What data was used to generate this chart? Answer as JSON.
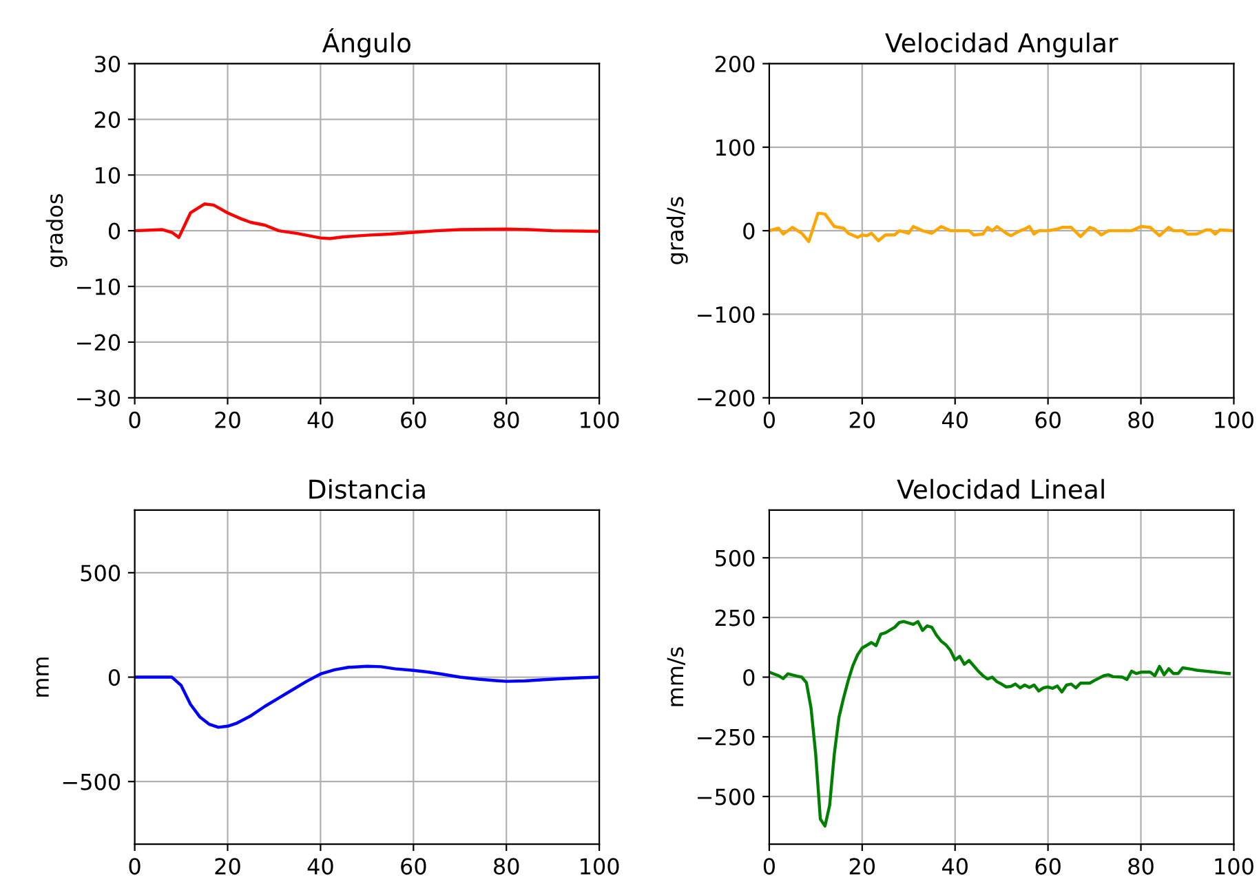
{
  "chart_data": [
    {
      "type": "line",
      "title": "Ángulo",
      "ylabel": "grados",
      "xlim": [
        0,
        100
      ],
      "xticks": [
        0,
        20,
        40,
        60,
        80,
        100
      ],
      "ylim": [
        -30,
        30
      ],
      "yticks": [
        {
          "value": -30,
          "label": "−30"
        },
        {
          "value": -20,
          "label": "−20"
        },
        {
          "value": -10,
          "label": "−10"
        },
        0,
        10,
        20,
        30
      ],
      "grid": true,
      "series": [
        {
          "color": "#ff0000",
          "x": [
            0,
            6,
            8,
            9.5,
            12,
            15,
            17,
            20,
            23,
            25,
            28,
            31,
            35,
            40,
            42,
            45,
            50,
            55,
            60,
            65,
            70,
            80,
            85,
            90,
            100
          ],
          "values": [
            0,
            0.2,
            -0.3,
            -1.2,
            3.2,
            4.8,
            4.6,
            3.2,
            2.1,
            1.5,
            1,
            0,
            -0.5,
            -1.3,
            -1.4,
            -1.1,
            -0.8,
            -0.6,
            -0.3,
            0,
            0.2,
            0.3,
            0.2,
            0,
            -0.1
          ]
        }
      ]
    },
    {
      "type": "line",
      "title": "Velocidad Angular",
      "ylabel": "grad/s",
      "xlim": [
        0,
        100
      ],
      "xticks": [
        0,
        20,
        40,
        60,
        80,
        100
      ],
      "ylim": [
        -200,
        200
      ],
      "yticks": [
        {
          "value": -200,
          "label": "−200"
        },
        {
          "value": -100,
          "label": "−100"
        },
        0,
        100,
        200
      ],
      "grid": true,
      "series": [
        {
          "color": "#ffa500",
          "x": [
            0,
            2,
            3,
            5,
            7,
            8.5,
            10.5,
            12,
            14,
            16,
            17,
            19,
            20,
            21,
            22,
            23.5,
            25,
            27,
            28,
            30,
            31,
            33,
            35,
            37,
            39,
            43,
            44,
            46,
            47,
            48,
            49,
            51,
            52,
            54,
            55,
            56,
            57,
            58,
            60,
            62,
            63,
            65,
            67,
            69,
            70,
            71.5,
            73,
            78,
            80,
            82,
            84,
            86,
            87,
            89,
            90,
            92,
            94,
            95,
            96,
            97,
            100
          ],
          "values": [
            0,
            3,
            -4,
            4,
            -3,
            -13,
            21,
            20,
            5,
            3,
            -3,
            -8,
            -5,
            -6,
            -3,
            -12,
            -5,
            -5,
            0,
            -3,
            5,
            0,
            -3,
            5,
            0,
            0,
            -5,
            -4,
            4,
            0,
            5,
            -3,
            -6,
            0,
            2,
            5,
            -4,
            0,
            0,
            2,
            4,
            4,
            -7,
            4,
            2,
            -5,
            0,
            0,
            5,
            4,
            -6,
            4,
            0,
            0,
            -4,
            -4,
            1,
            1,
            -4,
            1,
            0
          ]
        }
      ]
    },
    {
      "type": "line",
      "title": "Distancia",
      "ylabel": "mm",
      "xlim": [
        0,
        100
      ],
      "xticks": [
        0,
        20,
        40,
        60,
        80,
        100
      ],
      "ylim": [
        -800,
        800
      ],
      "yticks": [
        {
          "value": -500,
          "label": "−500"
        },
        0,
        500
      ],
      "grid": true,
      "series": [
        {
          "color": "#0000ff",
          "x": [
            0,
            8,
            10,
            12,
            14,
            16,
            18,
            20,
            22,
            25,
            28,
            31,
            34,
            37,
            40,
            43,
            46,
            50,
            53,
            56,
            60,
            63,
            66,
            70,
            74,
            78,
            80,
            84,
            88,
            92,
            96,
            100
          ],
          "values": [
            0,
            0,
            -40,
            -130,
            -190,
            -225,
            -240,
            -235,
            -220,
            -185,
            -140,
            -100,
            -60,
            -20,
            15,
            35,
            47,
            52,
            50,
            40,
            32,
            25,
            15,
            0,
            -10,
            -17,
            -20,
            -18,
            -12,
            -7,
            -3,
            0
          ]
        }
      ]
    },
    {
      "type": "line",
      "title": "Velocidad Lineal",
      "ylabel": "mm/s",
      "xlim": [
        0,
        100
      ],
      "xticks": [
        0,
        20,
        40,
        60,
        80,
        100
      ],
      "ylim": [
        -700,
        700
      ],
      "yticks": [
        {
          "value": -500,
          "label": "−500"
        },
        {
          "value": -250,
          "label": "−250"
        },
        0,
        250,
        500
      ],
      "grid": true,
      "series": [
        {
          "color": "#008000",
          "x": [
            0,
            2,
            3,
            4,
            6,
            7,
            8,
            9,
            10,
            11,
            12,
            13,
            14,
            15,
            16,
            17,
            18,
            19,
            20,
            22,
            23,
            24,
            25,
            27,
            28,
            29,
            30,
            31,
            32,
            33,
            34,
            35,
            36,
            37,
            38,
            39,
            40,
            41,
            42,
            43,
            44,
            45,
            46,
            47,
            48,
            49,
            50,
            51,
            52,
            53,
            54,
            55,
            56,
            57,
            58,
            59,
            60,
            61,
            62,
            63,
            64,
            65,
            66,
            67,
            69,
            70,
            72,
            73,
            74,
            76,
            77,
            78,
            79,
            80,
            82,
            83,
            84,
            85,
            86,
            87,
            88,
            89,
            91,
            92,
            99
          ],
          "values": [
            21,
            6,
            -6,
            14,
            4,
            0,
            -23,
            -130,
            -323,
            -595,
            -624,
            -537,
            -323,
            -169,
            -87,
            -14,
            48,
            93,
            122,
            145,
            132,
            180,
            186,
            209,
            229,
            233,
            227,
            221,
            233,
            196,
            215,
            209,
            176,
            151,
            136,
            112,
            72,
            87,
            54,
            70,
            48,
            25,
            6,
            -8,
            0,
            -19,
            -29,
            -41,
            -39,
            -29,
            -45,
            -33,
            -43,
            -33,
            -58,
            -45,
            -41,
            -47,
            -37,
            -62,
            -33,
            -29,
            -45,
            -25,
            -25,
            -14,
            6,
            10,
            2,
            0,
            -10,
            25,
            15,
            21,
            21,
            6,
            45,
            10,
            35,
            15,
            15,
            39,
            33,
            29,
            15
          ]
        }
      ]
    }
  ]
}
